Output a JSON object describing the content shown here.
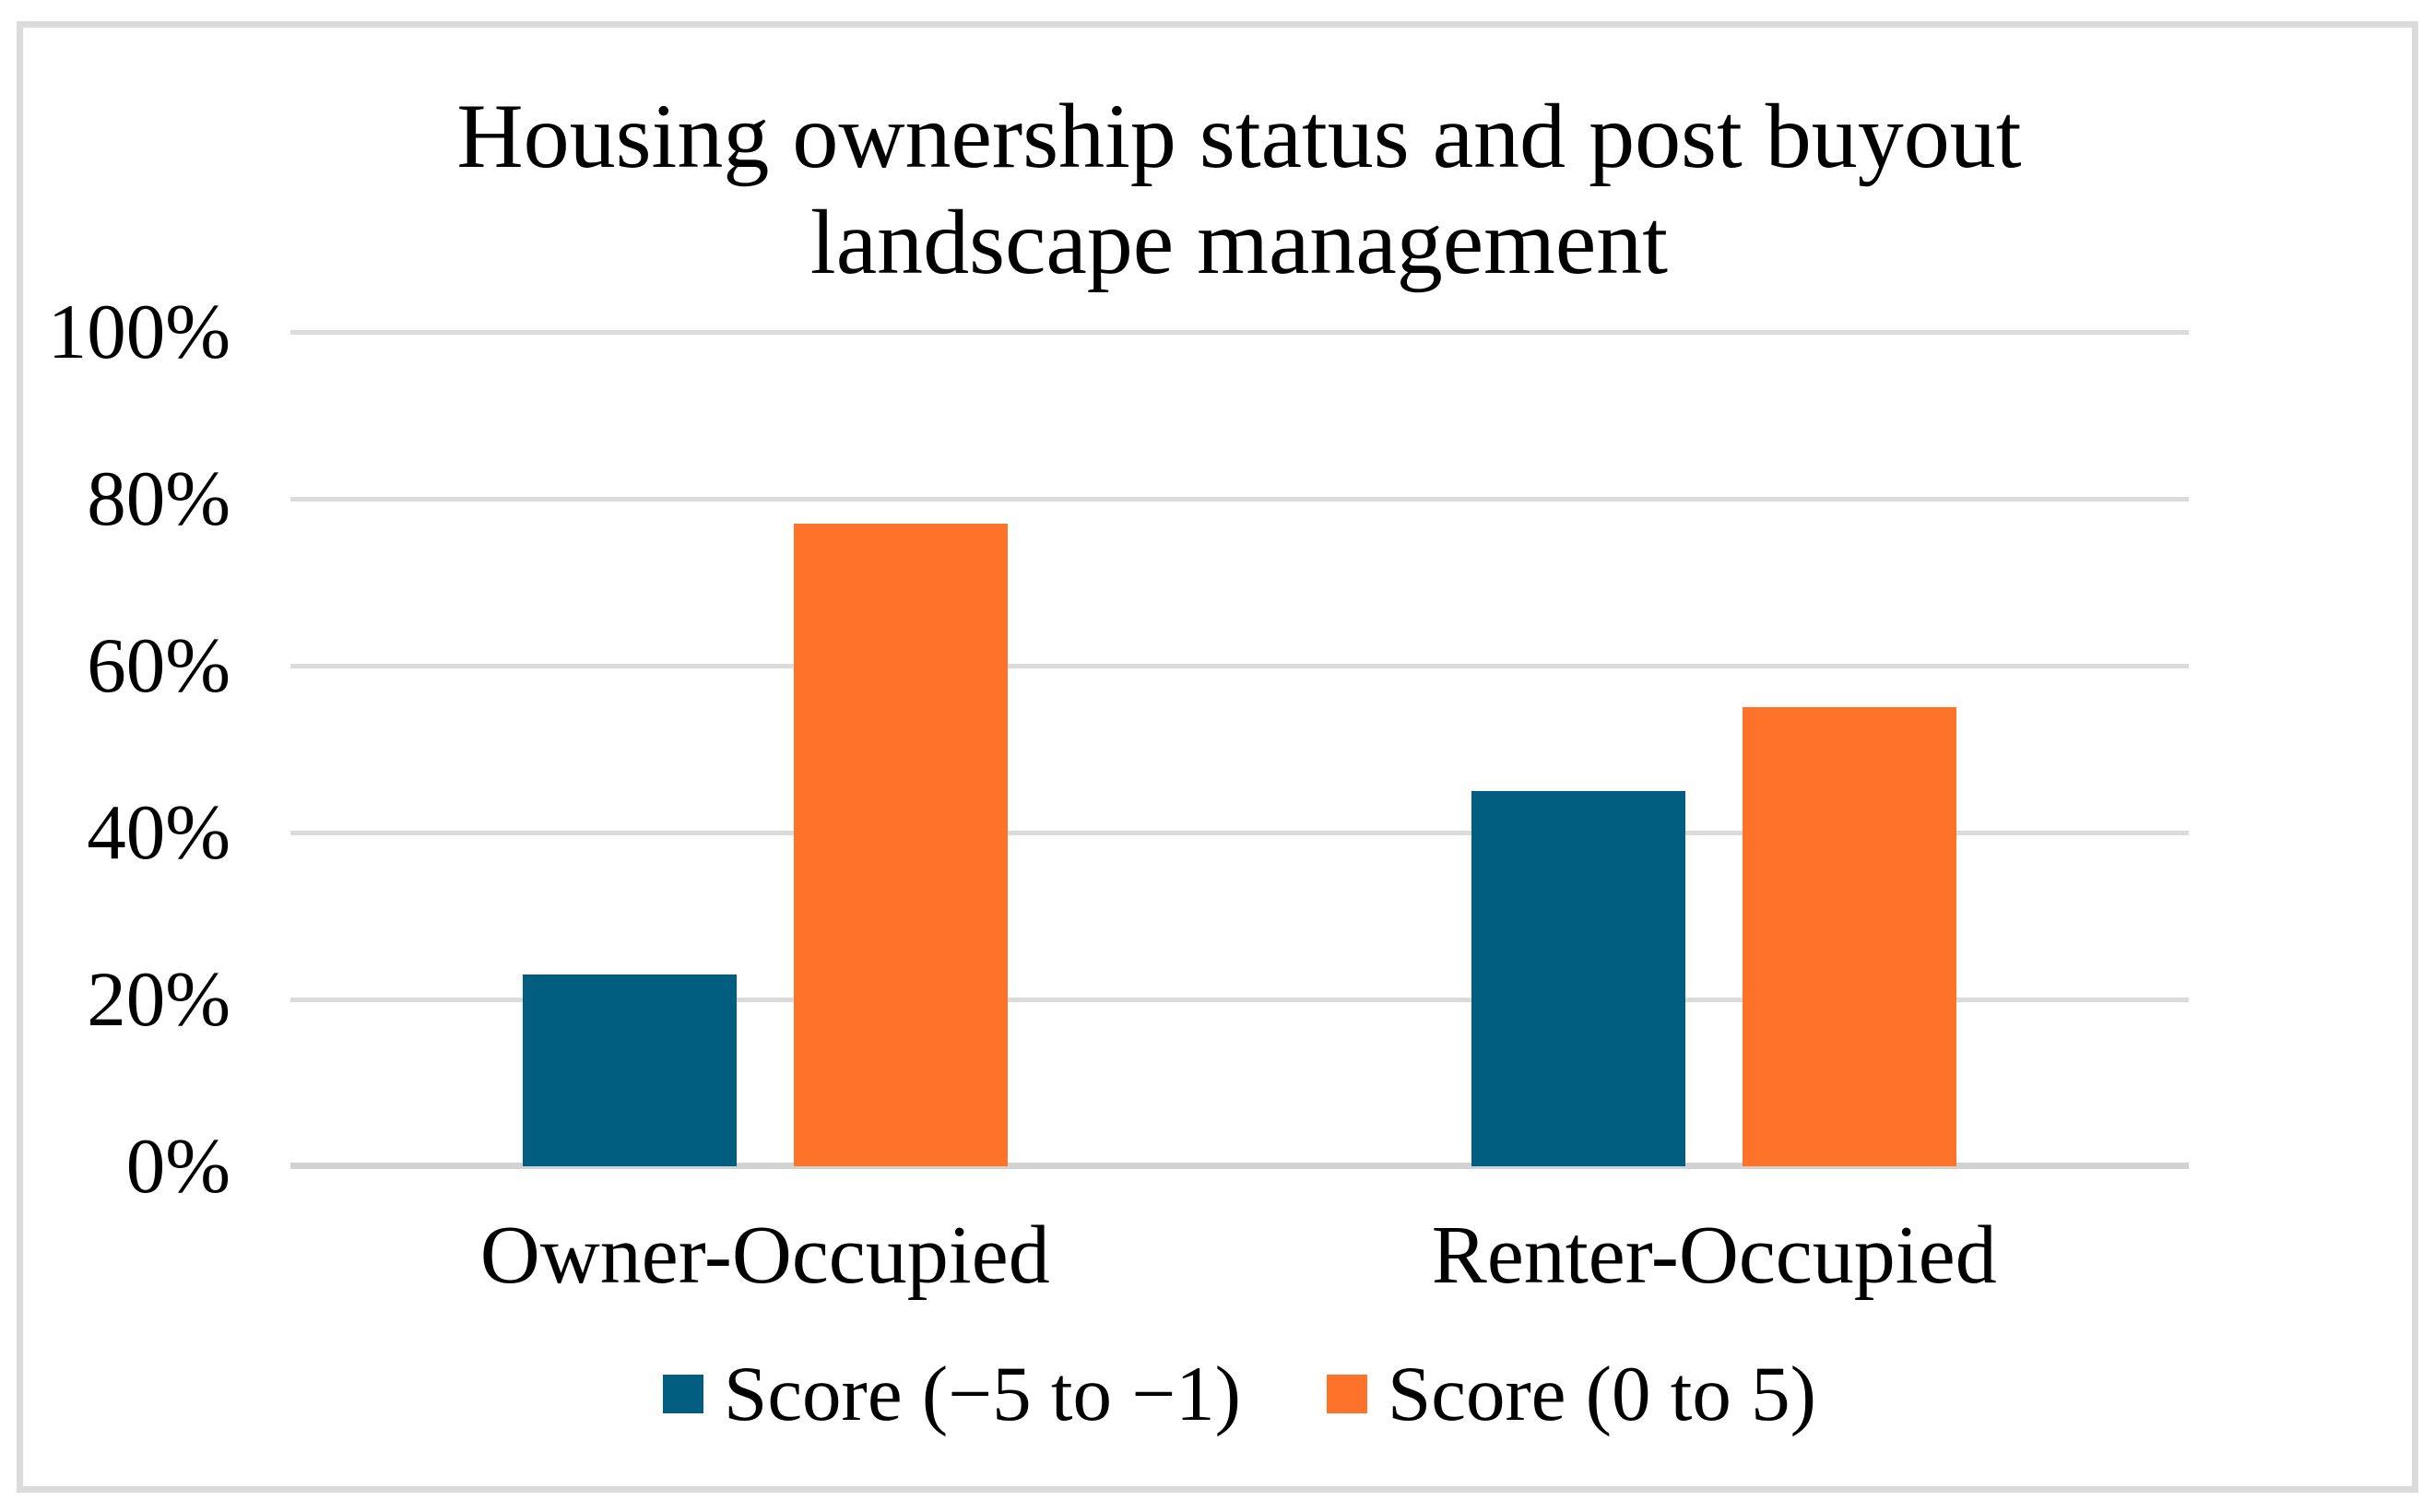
{
  "figure": {
    "background": "#FFFFFF",
    "border_color": "#DBDBDB"
  },
  "title": {
    "text": "Housing ownership status and post buyout landscape management",
    "line1": "Housing ownership status and post buyout",
    "line2": "landscape management"
  },
  "chart_data": {
    "type": "bar",
    "title": "Housing ownership status and post buyout landscape management",
    "categories": [
      "Owner-Occupied",
      "Renter-Occupied"
    ],
    "series": [
      {
        "name": "Score (−5 to −1)",
        "color": "#015E81",
        "values": [
          23,
          45
        ]
      },
      {
        "name": "Score (0 to 5)",
        "color": "#FF7229",
        "values": [
          77,
          55
        ]
      }
    ],
    "xlabel": "",
    "ylabel": "",
    "ylim": [
      0,
      100
    ],
    "unit": "percent",
    "yticks": {
      "values": [
        0,
        20,
        40,
        60,
        80,
        100
      ],
      "labels": [
        "0%",
        "20%",
        "40%",
        "60%",
        "80%",
        "100%"
      ]
    },
    "grid": "horizontal",
    "gridline_color": "#DBDBDB",
    "axis_line_color": "#D2D2D2",
    "legend_position": "bottom"
  }
}
